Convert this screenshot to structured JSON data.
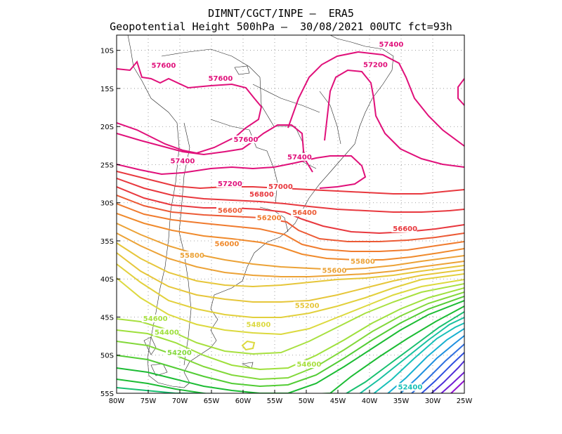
{
  "title_line1": "DIMNT/CGCT/INPE —  ERA5",
  "title_line2": "Geopotential Height 500hPa —  30/08/2021 00UTC fct=93h",
  "map": {
    "lon_range": [
      -80,
      -25
    ],
    "lat_range": [
      -55,
      -8
    ],
    "lon_ticks": [
      "80W",
      "75W",
      "70W",
      "65W",
      "60W",
      "55W",
      "50W",
      "45W",
      "40W",
      "35W",
      "30W",
      "25W"
    ],
    "lat_ticks": [
      "10S",
      "15S",
      "20S",
      "25S",
      "30S",
      "35S",
      "40S",
      "45S",
      "50S",
      "55S"
    ]
  },
  "contour_labels": [
    {
      "text": "57600",
      "lon": -74.5,
      "lat": -12.3,
      "color": "#e0107a"
    },
    {
      "text": "57600",
      "lon": -65.5,
      "lat": -14.0,
      "color": "#e0107a"
    },
    {
      "text": "57600",
      "lon": -61.5,
      "lat": -22.0,
      "color": "#e0107a"
    },
    {
      "text": "57400",
      "lon": -71.5,
      "lat": -24.8,
      "color": "#e0107a"
    },
    {
      "text": "57400",
      "lon": -38.5,
      "lat": -9.5,
      "color": "#e0107a"
    },
    {
      "text": "57200",
      "lon": -41.0,
      "lat": -12.2,
      "color": "#e0107a"
    },
    {
      "text": "57400",
      "lon": -53.0,
      "lat": -24.3,
      "color": "#e0107a"
    },
    {
      "text": "57200",
      "lon": -64.0,
      "lat": -27.8,
      "color": "#e0107a"
    },
    {
      "text": "57000",
      "lon": -56.0,
      "lat": -28.2,
      "color": "#e8383e"
    },
    {
      "text": "56800",
      "lon": -59.0,
      "lat": -29.2,
      "color": "#e8383e"
    },
    {
      "text": "56600",
      "lon": -64.0,
      "lat": -31.3,
      "color": "#ec5a35"
    },
    {
      "text": "56400",
      "lon": -52.2,
      "lat": -31.6,
      "color": "#ec5a35"
    },
    {
      "text": "56200",
      "lon": -57.8,
      "lat": -32.3,
      "color": "#f07b2e"
    },
    {
      "text": "56600",
      "lon": -36.3,
      "lat": -33.7,
      "color": "#e8383e"
    },
    {
      "text": "56000",
      "lon": -64.5,
      "lat": -35.7,
      "color": "#f08a2c"
    },
    {
      "text": "55800",
      "lon": -70.0,
      "lat": -37.2,
      "color": "#eca236"
    },
    {
      "text": "55800",
      "lon": -43.0,
      "lat": -38.0,
      "color": "#eca236"
    },
    {
      "text": "55600",
      "lon": -47.5,
      "lat": -39.2,
      "color": "#eca236"
    },
    {
      "text": "55200",
      "lon": -51.8,
      "lat": -43.8,
      "color": "#e6c63a"
    },
    {
      "text": "54800",
      "lon": -59.5,
      "lat": -46.3,
      "color": "#dcd93e"
    },
    {
      "text": "54600",
      "lon": -75.8,
      "lat": -45.5,
      "color": "#a8e040"
    },
    {
      "text": "54400",
      "lon": -74.0,
      "lat": -47.3,
      "color": "#9ee03c"
    },
    {
      "text": "54200",
      "lon": -72.0,
      "lat": -50.0,
      "color": "#82d83a"
    },
    {
      "text": "54600",
      "lon": -51.5,
      "lat": -51.5,
      "color": "#a8e040"
    },
    {
      "text": "52400",
      "lon": -35.5,
      "lat": -54.5,
      "color": "#18c0b8"
    }
  ],
  "colors": {
    "magenta": "#e0107a",
    "red": "#e8383e",
    "orange": "#f08a2c",
    "yellow": "#e6d23c",
    "green": "#1cbc34",
    "cyan": "#18c0b8",
    "blue": "#3050e0",
    "purple": "#9010d0"
  }
}
